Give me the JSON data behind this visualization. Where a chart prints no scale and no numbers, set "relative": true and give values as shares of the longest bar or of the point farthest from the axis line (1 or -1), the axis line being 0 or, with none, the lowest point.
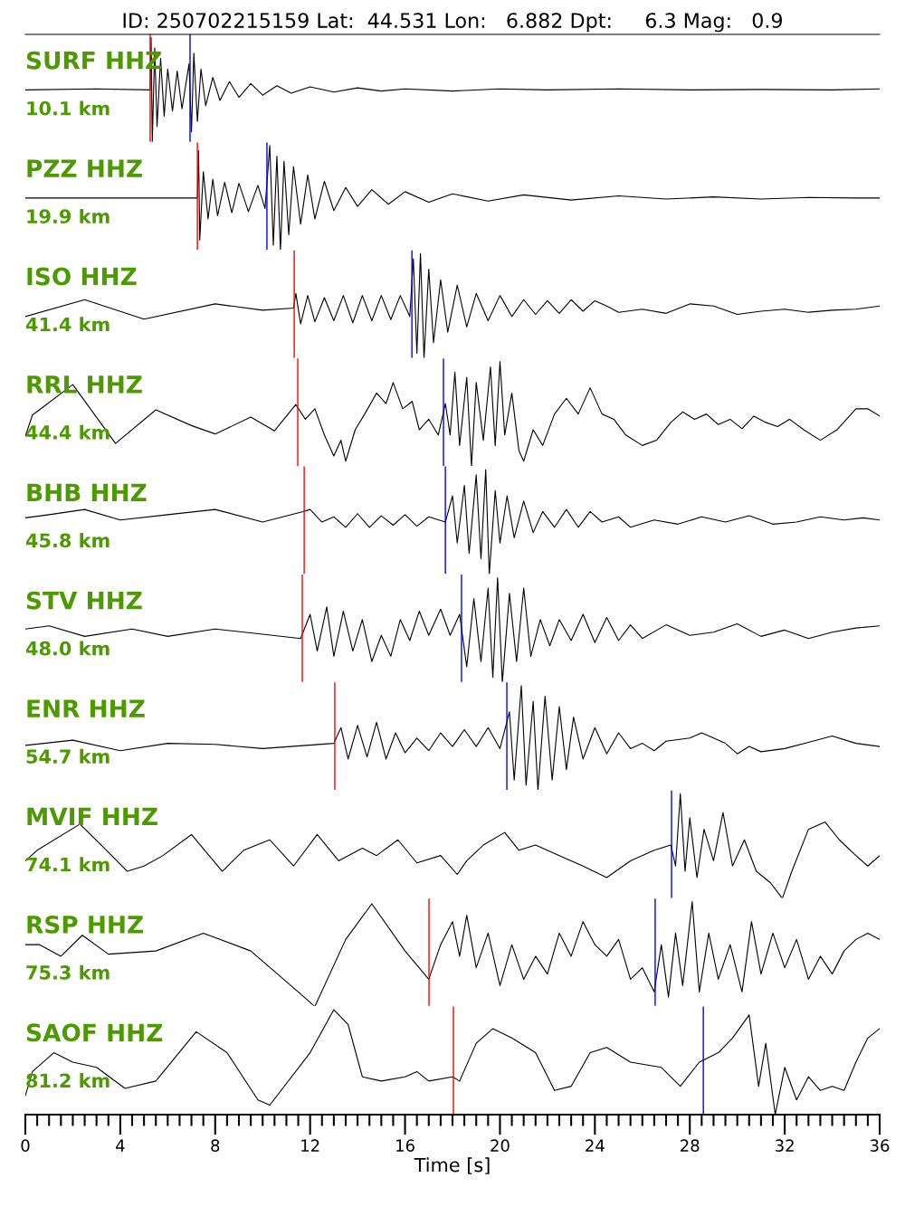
{
  "chart_data": [
    {
      "type": "line",
      "relative": true,
      "title": "ID: 250702215159 Lat:  44.531 Lon:   6.882 Dpt:     6.3 Mag:   0.9",
      "xlim": [
        0,
        36
      ],
      "tick_labels": false,
      "annotations": [
        "SURF HHZ",
        "10.1 km"
      ],
      "ref_lines": [
        {
          "axis": "x",
          "value": 5.26,
          "color": "#ff0000"
        },
        {
          "axis": "x",
          "value": 6.94,
          "color": "#0000ff"
        }
      ],
      "series": [
        {
          "color": "#000000",
          "x": [
            0,
            3,
            5.26,
            5.3,
            5.35,
            5.45,
            5.55,
            5.7,
            5.85,
            6.0,
            6.2,
            6.4,
            6.6,
            6.9,
            7.0,
            7.1,
            7.25,
            7.4,
            7.6,
            7.9,
            8.2,
            8.6,
            9.0,
            9.5,
            10,
            10.6,
            11.2,
            12,
            13,
            14,
            15,
            16,
            18,
            20,
            22,
            25,
            28,
            31,
            34,
            36
          ],
          "values": [
            0.5,
            0.51,
            0.5,
            1.0,
            0.0,
            0.9,
            0.15,
            0.8,
            0.25,
            0.7,
            0.3,
            0.68,
            0.32,
            0.75,
            0.1,
            0.85,
            0.2,
            0.7,
            0.35,
            0.62,
            0.4,
            0.58,
            0.43,
            0.56,
            0.45,
            0.54,
            0.47,
            0.53,
            0.48,
            0.52,
            0.49,
            0.51,
            0.49,
            0.51,
            0.5,
            0.51,
            0.5,
            0.505,
            0.5,
            0.51
          ]
        }
      ]
    },
    {
      "type": "line",
      "relative": true,
      "xlim": [
        0,
        36
      ],
      "tick_labels": false,
      "annotations": [
        "PZZ HHZ",
        "19.9 km"
      ],
      "ref_lines": [
        {
          "axis": "x",
          "value": 7.25,
          "color": "#ff0000"
        },
        {
          "axis": "x",
          "value": 10.18,
          "color": "#0000ff"
        }
      ],
      "series": [
        {
          "color": "#000000",
          "x": [
            0,
            4,
            7.25,
            7.3,
            7.35,
            7.5,
            7.7,
            7.9,
            8.1,
            8.4,
            8.7,
            9.0,
            9.4,
            9.8,
            10.1,
            10.3,
            10.45,
            10.6,
            10.75,
            10.9,
            11.1,
            11.3,
            11.6,
            11.9,
            12.2,
            12.6,
            13.0,
            13.5,
            14,
            14.6,
            15.3,
            16,
            17,
            18,
            19.5,
            21,
            23,
            25,
            27,
            29,
            31,
            33,
            35,
            36
          ],
          "values": [
            0.5,
            0.5,
            0.5,
            0.95,
            0.1,
            0.75,
            0.3,
            0.68,
            0.33,
            0.65,
            0.36,
            0.64,
            0.37,
            0.62,
            0.4,
            1.0,
            0.05,
            0.9,
            0.0,
            0.85,
            0.15,
            0.8,
            0.25,
            0.72,
            0.3,
            0.66,
            0.38,
            0.6,
            0.42,
            0.58,
            0.44,
            0.56,
            0.46,
            0.54,
            0.47,
            0.53,
            0.48,
            0.52,
            0.49,
            0.51,
            0.49,
            0.505,
            0.5,
            0.5
          ]
        }
      ]
    },
    {
      "type": "line",
      "relative": true,
      "xlim": [
        0,
        36
      ],
      "tick_labels": false,
      "annotations": [
        "ISO HHZ",
        "41.4 km"
      ],
      "ref_lines": [
        {
          "axis": "x",
          "value": 11.33,
          "color": "#ff0000"
        },
        {
          "axis": "x",
          "value": 16.29,
          "color": "#0000ff"
        }
      ],
      "series": [
        {
          "color": "#000000",
          "x": [
            0,
            2.5,
            5,
            8,
            10,
            11.3,
            11.4,
            11.6,
            11.9,
            12.2,
            12.6,
            13.0,
            13.4,
            13.8,
            14.2,
            14.6,
            15.0,
            15.4,
            15.8,
            16.2,
            16.35,
            16.5,
            16.65,
            16.8,
            17.0,
            17.2,
            17.5,
            17.8,
            18.2,
            18.6,
            19.0,
            19.5,
            20,
            20.5,
            21,
            21.5,
            22,
            22.5,
            23,
            23.5,
            24,
            24.5,
            25,
            26,
            27,
            28,
            29,
            30,
            31,
            32,
            33,
            34,
            35,
            36
          ],
          "values": [
            0.4,
            0.56,
            0.375,
            0.52,
            0.46,
            0.48,
            0.62,
            0.33,
            0.6,
            0.35,
            0.58,
            0.36,
            0.6,
            0.34,
            0.6,
            0.36,
            0.6,
            0.37,
            0.6,
            0.4,
            0.95,
            0.05,
            1.0,
            0.0,
            0.85,
            0.15,
            0.75,
            0.25,
            0.7,
            0.3,
            0.62,
            0.36,
            0.6,
            0.4,
            0.56,
            0.42,
            0.55,
            0.43,
            0.56,
            0.45,
            0.55,
            0.5,
            0.44,
            0.47,
            0.43,
            0.52,
            0.5,
            0.42,
            0.45,
            0.47,
            0.44,
            0.46,
            0.47,
            0.5
          ]
        }
      ]
    },
    {
      "type": "line",
      "relative": true,
      "xlim": [
        0,
        36
      ],
      "tick_labels": false,
      "annotations": [
        "RRL HHZ",
        "44.4 km"
      ],
      "ref_lines": [
        {
          "axis": "x",
          "value": 11.48,
          "color": "#ff0000"
        },
        {
          "axis": "x",
          "value": 17.62,
          "color": "#0000ff"
        }
      ],
      "series": [
        {
          "color": "#000000",
          "x": [
            0,
            0.3,
            2,
            3.8,
            5.5,
            7,
            8,
            9.5,
            10.5,
            11.4,
            11.8,
            12.2,
            12.6,
            13.0,
            13.3,
            13.5,
            13.9,
            14.3,
            14.8,
            15.2,
            15.5,
            15.9,
            16.3,
            16.6,
            17,
            17.4,
            17.7,
            17.9,
            18.1,
            18.3,
            18.6,
            18.8,
            19.0,
            19.3,
            19.6,
            19.8,
            20.0,
            20.2,
            20.5,
            20.8,
            21.0,
            21.4,
            21.8,
            22.3,
            22.8,
            23.3,
            23.8,
            24.3,
            24.8,
            25.3,
            26,
            26.6,
            27.2,
            27.7,
            28.2,
            28.7,
            29.2,
            29.7,
            30.2,
            30.7,
            31.2,
            31.7,
            32.2,
            32.8,
            33.5,
            34.2,
            35,
            35.5,
            36
          ],
          "values": [
            0.29,
            0.49,
            0.78,
            0.22,
            0.54,
            0.39,
            0.31,
            0.47,
            0.34,
            0.59,
            0.45,
            0.55,
            0.3,
            0.1,
            0.25,
            0.05,
            0.35,
            0.5,
            0.7,
            0.6,
            0.8,
            0.55,
            0.62,
            0.35,
            0.45,
            0.3,
            0.6,
            0.3,
            0.9,
            0.2,
            0.85,
            0.0,
            0.8,
            0.25,
            0.95,
            0.2,
            1.0,
            0.3,
            0.7,
            0.15,
            0.05,
            0.35,
            0.2,
            0.5,
            0.65,
            0.5,
            0.75,
            0.5,
            0.45,
            0.3,
            0.2,
            0.25,
            0.42,
            0.52,
            0.45,
            0.5,
            0.4,
            0.45,
            0.36,
            0.48,
            0.42,
            0.38,
            0.45,
            0.35,
            0.25,
            0.35,
            0.55,
            0.55,
            0.48
          ]
        }
      ]
    },
    {
      "type": "line",
      "relative": true,
      "xlim": [
        0,
        36
      ],
      "tick_labels": false,
      "annotations": [
        "BHB HHZ",
        "45.8 km"
      ],
      "ref_lines": [
        {
          "axis": "x",
          "value": 11.75,
          "color": "#ff0000"
        },
        {
          "axis": "x",
          "value": 17.7,
          "color": "#0000ff"
        }
      ],
      "series": [
        {
          "color": "#000000",
          "x": [
            0,
            1,
            2.5,
            4,
            6,
            8,
            10,
            11.7,
            12,
            12.5,
            13,
            13.5,
            14,
            14.5,
            15,
            15.5,
            16,
            16.5,
            17,
            17.7,
            18.0,
            18.2,
            18.5,
            18.7,
            19.0,
            19.2,
            19.4,
            19.55,
            19.8,
            20.0,
            20.3,
            20.6,
            21,
            21.4,
            21.8,
            22.3,
            22.8,
            23.3,
            23.8,
            24.3,
            25,
            25.5,
            26.5,
            27.5,
            28.5,
            29.5,
            30.5,
            31.5,
            32.5,
            33.5,
            34.5,
            35.3,
            36
          ],
          "values": [
            0.54,
            0.57,
            0.62,
            0.52,
            0.57,
            0.62,
            0.5,
            0.6,
            0.62,
            0.5,
            0.55,
            0.45,
            0.58,
            0.45,
            0.56,
            0.47,
            0.57,
            0.46,
            0.55,
            0.5,
            0.75,
            0.3,
            0.85,
            0.2,
            0.95,
            0.15,
            1.0,
            0.0,
            0.8,
            0.3,
            0.75,
            0.35,
            0.7,
            0.4,
            0.6,
            0.45,
            0.62,
            0.45,
            0.6,
            0.5,
            0.55,
            0.45,
            0.52,
            0.48,
            0.55,
            0.5,
            0.56,
            0.48,
            0.5,
            0.55,
            0.52,
            0.54,
            0.52
          ]
        }
      ]
    },
    {
      "type": "line",
      "relative": true,
      "xlim": [
        0,
        36
      ],
      "tick_labels": false,
      "annotations": [
        "STV HHZ",
        "48.0 km"
      ],
      "ref_lines": [
        {
          "axis": "x",
          "value": 11.67,
          "color": "#ff0000"
        },
        {
          "axis": "x",
          "value": 18.38,
          "color": "#0000ff"
        }
      ],
      "series": [
        {
          "color": "#000000",
          "x": [
            0,
            1,
            2.5,
            4.5,
            6,
            8,
            10,
            11.6,
            12,
            12.3,
            12.7,
            13,
            13.4,
            13.8,
            14.2,
            14.6,
            15,
            15.4,
            15.8,
            16.2,
            16.6,
            17,
            17.5,
            17.9,
            18.3,
            18.6,
            18.9,
            19.2,
            19.5,
            19.7,
            19.9,
            20.1,
            20.4,
            20.7,
            21.0,
            21.3,
            21.7,
            22.1,
            22.5,
            23,
            23.5,
            24,
            24.5,
            25,
            25.5,
            26,
            27,
            28,
            29,
            30,
            31,
            32,
            33,
            34,
            35,
            36
          ],
          "values": [
            0.51,
            0.54,
            0.44,
            0.51,
            0.44,
            0.51,
            0.46,
            0.42,
            0.65,
            0.3,
            0.72,
            0.25,
            0.68,
            0.3,
            0.6,
            0.2,
            0.45,
            0.25,
            0.6,
            0.4,
            0.68,
            0.45,
            0.7,
            0.45,
            0.65,
            0.15,
            0.8,
            0.2,
            0.9,
            0.05,
            1.0,
            0.0,
            0.85,
            0.2,
            0.9,
            0.25,
            0.6,
            0.35,
            0.6,
            0.4,
            0.65,
            0.38,
            0.62,
            0.4,
            0.55,
            0.42,
            0.55,
            0.45,
            0.48,
            0.56,
            0.44,
            0.5,
            0.42,
            0.48,
            0.52,
            0.54
          ]
        }
      ]
    },
    {
      "type": "line",
      "relative": true,
      "xlim": [
        0,
        36
      ],
      "tick_labels": false,
      "annotations": [
        "ENR HHZ",
        "54.7 km"
      ],
      "ref_lines": [
        {
          "axis": "x",
          "value": 13.04,
          "color": "#ff0000"
        },
        {
          "axis": "x",
          "value": 20.29,
          "color": "#0000ff"
        }
      ],
      "series": [
        {
          "color": "#000000",
          "x": [
            0,
            2,
            4,
            6,
            8,
            10,
            13,
            13.3,
            13.6,
            14,
            14.4,
            14.8,
            15.2,
            15.6,
            16,
            16.5,
            17,
            17.5,
            18,
            18.5,
            19,
            19.5,
            20,
            20.4,
            20.6,
            20.9,
            21.1,
            21.4,
            21.6,
            21.9,
            22.2,
            22.5,
            22.8,
            23.1,
            23.5,
            24,
            24.5,
            25,
            25.5,
            26,
            26.5,
            27,
            28,
            28.5,
            29,
            29.5,
            30,
            30.5,
            31,
            32,
            33,
            34,
            35,
            36
          ],
          "values": [
            0.43,
            0.48,
            0.38,
            0.45,
            0.44,
            0.4,
            0.45,
            0.6,
            0.3,
            0.62,
            0.32,
            0.65,
            0.3,
            0.55,
            0.36,
            0.5,
            0.38,
            0.55,
            0.42,
            0.58,
            0.42,
            0.6,
            0.4,
            0.75,
            0.1,
            1.0,
            0.05,
            0.85,
            0.0,
            0.9,
            0.1,
            0.8,
            0.2,
            0.7,
            0.3,
            0.6,
            0.35,
            0.55,
            0.4,
            0.45,
            0.38,
            0.47,
            0.5,
            0.55,
            0.5,
            0.45,
            0.35,
            0.42,
            0.37,
            0.4,
            0.46,
            0.52,
            0.45,
            0.42
          ]
        }
      ]
    },
    {
      "type": "line",
      "relative": true,
      "xlim": [
        0,
        36
      ],
      "tick_labels": false,
      "annotations": [
        "MVIF HHZ",
        "74.1 km"
      ],
      "ref_lines": [
        {
          "axis": "x",
          "value": 27.23,
          "color": "#0000ff"
        }
      ],
      "series": [
        {
          "color": "#000000",
          "x": [
            0,
            0.5,
            2.3,
            3.2,
            4.3,
            5,
            5.8,
            7,
            8.3,
            9.2,
            10.3,
            11.3,
            12.3,
            13.2,
            14.2,
            14.8,
            15.7,
            16.5,
            17.5,
            18.2,
            18.6,
            19.3,
            20.2,
            20.8,
            21.5,
            22.5,
            23.5,
            24.5,
            25.5,
            26.5,
            27.2,
            27.4,
            27.6,
            27.8,
            28.0,
            28.3,
            28.6,
            29,
            29.4,
            29.8,
            30.3,
            30.8,
            31.4,
            31.9,
            32.3,
            33,
            33.7,
            34.3,
            35,
            35.5,
            36
          ],
          "values": [
            0.36,
            0.46,
            0.71,
            0.51,
            0.26,
            0.31,
            0.41,
            0.61,
            0.26,
            0.46,
            0.56,
            0.31,
            0.61,
            0.36,
            0.48,
            0.41,
            0.56,
            0.34,
            0.41,
            0.23,
            0.36,
            0.51,
            0.63,
            0.46,
            0.51,
            0.41,
            0.31,
            0.2,
            0.36,
            0.46,
            0.51,
            0.31,
            1.0,
            0.26,
            0.77,
            0.2,
            0.66,
            0.36,
            0.82,
            0.31,
            0.56,
            0.26,
            0.15,
            0.0,
            0.26,
            0.66,
            0.73,
            0.56,
            0.41,
            0.31,
            0.41
          ]
        }
      ]
    },
    {
      "type": "line",
      "relative": true,
      "xlim": [
        0,
        36
      ],
      "tick_labels": false,
      "annotations": [
        "RSP HHZ",
        "75.3 km"
      ],
      "ref_lines": [
        {
          "axis": "x",
          "value": 17.01,
          "color": "#ff0000"
        },
        {
          "axis": "x",
          "value": 26.54,
          "color": "#0000ff"
        }
      ],
      "series": [
        {
          "color": "#000000",
          "x": [
            0,
            0.6,
            1.5,
            2.4,
            3.5,
            5.5,
            7.5,
            9.5,
            11.5,
            12.2,
            13.5,
            14.6,
            16,
            17.0,
            17.5,
            18,
            18.3,
            18.6,
            19,
            19.5,
            20,
            20.5,
            21,
            21.5,
            22,
            22.5,
            23,
            23.5,
            24,
            24.5,
            25,
            25.5,
            26,
            26.5,
            26.8,
            27.1,
            27.4,
            27.7,
            28.1,
            28.4,
            28.8,
            29.2,
            29.7,
            30.2,
            30.6,
            31,
            31.5,
            32,
            32.5,
            33,
            33.5,
            34,
            34.5,
            35,
            35.5,
            36
          ],
          "values": [
            0.59,
            0.59,
            0.48,
            0.68,
            0.5,
            0.53,
            0.7,
            0.53,
            0.14,
            0.0,
            0.64,
            0.98,
            0.53,
            0.26,
            0.59,
            0.81,
            0.48,
            0.87,
            0.37,
            0.7,
            0.2,
            0.59,
            0.26,
            0.48,
            0.31,
            0.7,
            0.48,
            0.81,
            0.59,
            0.48,
            0.64,
            0.26,
            0.37,
            0.14,
            0.59,
            0.09,
            0.7,
            0.2,
            1.0,
            0.14,
            0.7,
            0.26,
            0.59,
            0.14,
            0.81,
            0.31,
            0.7,
            0.37,
            0.64,
            0.26,
            0.48,
            0.31,
            0.53,
            0.64,
            0.7,
            0.64
          ]
        }
      ]
    },
    {
      "type": "line",
      "relative": true,
      "xlim": [
        0,
        36
      ],
      "xticks": [
        {
          "value": 0,
          "label": "0"
        },
        {
          "value": 0.5,
          "label": null
        },
        {
          "value": 1,
          "label": null
        },
        {
          "value": 1.5,
          "label": null
        },
        {
          "value": 2,
          "label": null
        },
        {
          "value": 2.5,
          "label": null
        },
        {
          "value": 3,
          "label": null
        },
        {
          "value": 3.5,
          "label": null
        },
        {
          "value": 4,
          "label": "4"
        },
        {
          "value": 4.5,
          "label": null
        },
        {
          "value": 5,
          "label": null
        },
        {
          "value": 5.5,
          "label": null
        },
        {
          "value": 6,
          "label": null
        },
        {
          "value": 6.5,
          "label": null
        },
        {
          "value": 7,
          "label": null
        },
        {
          "value": 7.5,
          "label": null
        },
        {
          "value": 8,
          "label": "8"
        },
        {
          "value": 8.5,
          "label": null
        },
        {
          "value": 9,
          "label": null
        },
        {
          "value": 9.5,
          "label": null
        },
        {
          "value": 10,
          "label": null
        },
        {
          "value": 10.5,
          "label": null
        },
        {
          "value": 11,
          "label": null
        },
        {
          "value": 11.5,
          "label": null
        },
        {
          "value": 12,
          "label": "12"
        },
        {
          "value": 12.5,
          "label": null
        },
        {
          "value": 13,
          "label": null
        },
        {
          "value": 13.5,
          "label": null
        },
        {
          "value": 14,
          "label": null
        },
        {
          "value": 14.5,
          "label": null
        },
        {
          "value": 15,
          "label": null
        },
        {
          "value": 15.5,
          "label": null
        },
        {
          "value": 16,
          "label": "16"
        },
        {
          "value": 16.5,
          "label": null
        },
        {
          "value": 17,
          "label": null
        },
        {
          "value": 17.5,
          "label": null
        },
        {
          "value": 18,
          "label": null
        },
        {
          "value": 18.5,
          "label": null
        },
        {
          "value": 19,
          "label": null
        },
        {
          "value": 19.5,
          "label": null
        },
        {
          "value": 20,
          "label": "20"
        },
        {
          "value": 20.5,
          "label": null
        },
        {
          "value": 21,
          "label": null
        },
        {
          "value": 21.5,
          "label": null
        },
        {
          "value": 22,
          "label": null
        },
        {
          "value": 22.5,
          "label": null
        },
        {
          "value": 23,
          "label": null
        },
        {
          "value": 23.5,
          "label": null
        },
        {
          "value": 24,
          "label": "24"
        },
        {
          "value": 24.5,
          "label": null
        },
        {
          "value": 25,
          "label": null
        },
        {
          "value": 25.5,
          "label": null
        },
        {
          "value": 26,
          "label": null
        },
        {
          "value": 26.5,
          "label": null
        },
        {
          "value": 27,
          "label": null
        },
        {
          "value": 27.5,
          "label": null
        },
        {
          "value": 28,
          "label": "28"
        },
        {
          "value": 28.5,
          "label": null
        },
        {
          "value": 29,
          "label": null
        },
        {
          "value": 29.5,
          "label": null
        },
        {
          "value": 30,
          "label": null
        },
        {
          "value": 30.5,
          "label": null
        },
        {
          "value": 31,
          "label": null
        },
        {
          "value": 31.5,
          "label": null
        },
        {
          "value": 32,
          "label": "32"
        },
        {
          "value": 32.5,
          "label": null
        },
        {
          "value": 33,
          "label": null
        },
        {
          "value": 33.5,
          "label": null
        },
        {
          "value": 34,
          "label": null
        },
        {
          "value": 34.5,
          "label": null
        },
        {
          "value": 35,
          "label": null
        },
        {
          "value": 35.5,
          "label": null
        },
        {
          "value": 36,
          "label": "36"
        }
      ],
      "xlabel": "Time [s]",
      "tick_labels": "x",
      "annotations": [
        "SAOF HHZ",
        "81.2 km"
      ],
      "ref_lines": [
        {
          "axis": "x",
          "value": 18.04,
          "color": "#ff0000"
        },
        {
          "axis": "x",
          "value": 28.57,
          "color": "#0000ff"
        }
      ],
      "series": [
        {
          "color": "#000000",
          "x": [
            0,
            0.3,
            1.2,
            2,
            3,
            4.2,
            5.5,
            7.2,
            8.5,
            9.8,
            10.3,
            12,
            13.0,
            13.6,
            14.2,
            15,
            16,
            16.5,
            17,
            18,
            18.3,
            19,
            19.7,
            20.5,
            21.5,
            22.3,
            23,
            23.8,
            24.5,
            25.5,
            26.8,
            27.6,
            28.4,
            29.2,
            29.8,
            30.5,
            30.9,
            31.2,
            31.6,
            32,
            32.5,
            33,
            33.5,
            34,
            34.5,
            35,
            35.5,
            36
          ],
          "values": [
            0.18,
            0.41,
            0.59,
            0.5,
            0.45,
            0.25,
            0.32,
            0.79,
            0.59,
            0.14,
            0.09,
            0.59,
            1.0,
            0.86,
            0.36,
            0.32,
            0.36,
            0.41,
            0.32,
            0.36,
            0.32,
            0.68,
            0.82,
            0.73,
            0.59,
            0.23,
            0.27,
            0.59,
            0.64,
            0.5,
            0.45,
            0.27,
            0.5,
            0.59,
            0.73,
            0.95,
            0.27,
            0.68,
            0.0,
            0.45,
            0.14,
            0.36,
            0.23,
            0.27,
            0.23,
            0.5,
            0.73,
            0.82
          ]
        }
      ]
    }
  ]
}
